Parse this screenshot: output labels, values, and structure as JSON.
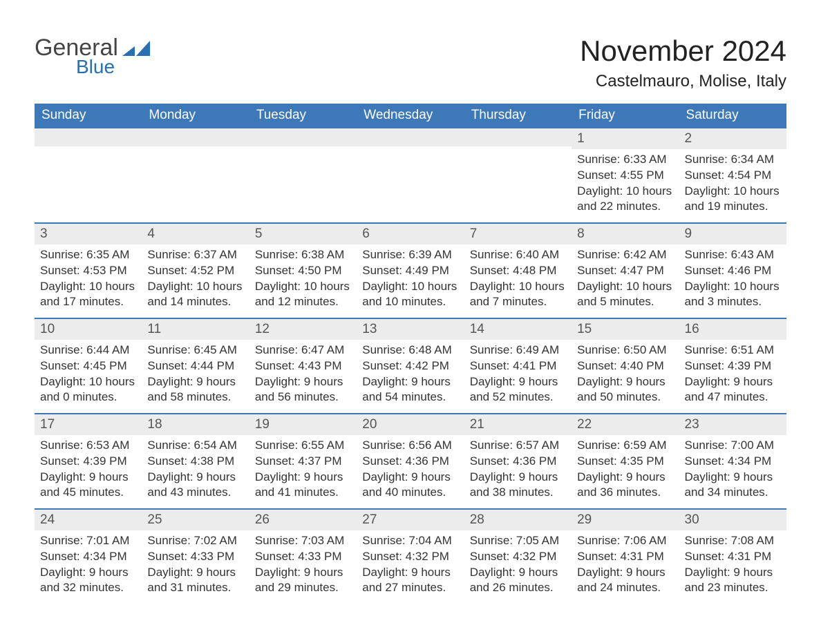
{
  "brand": {
    "name1": "General",
    "name2": "Blue",
    "logo_color": "#2a6fb3",
    "text1_color": "#444444",
    "text1_fontsize": 34,
    "text2_fontsize": 28
  },
  "title": {
    "month": "November 2024",
    "location": "Castelmauro, Molise, Italy",
    "month_fontsize": 42,
    "location_fontsize": 24,
    "color": "#222222"
  },
  "calendar": {
    "type": "table",
    "header_bg": "#3d78b8",
    "header_fg": "#ffffff",
    "header_fontsize": 19,
    "date_strip_bg": "#ececec",
    "date_strip_border": "#3d78b8",
    "cell_fontsize": 17,
    "cell_color": "#333333",
    "background_color": "#ffffff",
    "columns": [
      "Sunday",
      "Monday",
      "Tuesday",
      "Wednesday",
      "Thursday",
      "Friday",
      "Saturday"
    ],
    "weeks": [
      [
        null,
        null,
        null,
        null,
        null,
        {
          "d": "1",
          "sunrise": "6:33 AM",
          "sunset": "4:55 PM",
          "dl1": "10 hours",
          "dl2": "and 22 minutes."
        },
        {
          "d": "2",
          "sunrise": "6:34 AM",
          "sunset": "4:54 PM",
          "dl1": "10 hours",
          "dl2": "and 19 minutes."
        }
      ],
      [
        {
          "d": "3",
          "sunrise": "6:35 AM",
          "sunset": "4:53 PM",
          "dl1": "10 hours",
          "dl2": "and 17 minutes."
        },
        {
          "d": "4",
          "sunrise": "6:37 AM",
          "sunset": "4:52 PM",
          "dl1": "10 hours",
          "dl2": "and 14 minutes."
        },
        {
          "d": "5",
          "sunrise": "6:38 AM",
          "sunset": "4:50 PM",
          "dl1": "10 hours",
          "dl2": "and 12 minutes."
        },
        {
          "d": "6",
          "sunrise": "6:39 AM",
          "sunset": "4:49 PM",
          "dl1": "10 hours",
          "dl2": "and 10 minutes."
        },
        {
          "d": "7",
          "sunrise": "6:40 AM",
          "sunset": "4:48 PM",
          "dl1": "10 hours",
          "dl2": "and 7 minutes."
        },
        {
          "d": "8",
          "sunrise": "6:42 AM",
          "sunset": "4:47 PM",
          "dl1": "10 hours",
          "dl2": "and 5 minutes."
        },
        {
          "d": "9",
          "sunrise": "6:43 AM",
          "sunset": "4:46 PM",
          "dl1": "10 hours",
          "dl2": "and 3 minutes."
        }
      ],
      [
        {
          "d": "10",
          "sunrise": "6:44 AM",
          "sunset": "4:45 PM",
          "dl1": "10 hours",
          "dl2": "and 0 minutes."
        },
        {
          "d": "11",
          "sunrise": "6:45 AM",
          "sunset": "4:44 PM",
          "dl1": "9 hours",
          "dl2": "and 58 minutes."
        },
        {
          "d": "12",
          "sunrise": "6:47 AM",
          "sunset": "4:43 PM",
          "dl1": "9 hours",
          "dl2": "and 56 minutes."
        },
        {
          "d": "13",
          "sunrise": "6:48 AM",
          "sunset": "4:42 PM",
          "dl1": "9 hours",
          "dl2": "and 54 minutes."
        },
        {
          "d": "14",
          "sunrise": "6:49 AM",
          "sunset": "4:41 PM",
          "dl1": "9 hours",
          "dl2": "and 52 minutes."
        },
        {
          "d": "15",
          "sunrise": "6:50 AM",
          "sunset": "4:40 PM",
          "dl1": "9 hours",
          "dl2": "and 50 minutes."
        },
        {
          "d": "16",
          "sunrise": "6:51 AM",
          "sunset": "4:39 PM",
          "dl1": "9 hours",
          "dl2": "and 47 minutes."
        }
      ],
      [
        {
          "d": "17",
          "sunrise": "6:53 AM",
          "sunset": "4:39 PM",
          "dl1": "9 hours",
          "dl2": "and 45 minutes."
        },
        {
          "d": "18",
          "sunrise": "6:54 AM",
          "sunset": "4:38 PM",
          "dl1": "9 hours",
          "dl2": "and 43 minutes."
        },
        {
          "d": "19",
          "sunrise": "6:55 AM",
          "sunset": "4:37 PM",
          "dl1": "9 hours",
          "dl2": "and 41 minutes."
        },
        {
          "d": "20",
          "sunrise": "6:56 AM",
          "sunset": "4:36 PM",
          "dl1": "9 hours",
          "dl2": "and 40 minutes."
        },
        {
          "d": "21",
          "sunrise": "6:57 AM",
          "sunset": "4:36 PM",
          "dl1": "9 hours",
          "dl2": "and 38 minutes."
        },
        {
          "d": "22",
          "sunrise": "6:59 AM",
          "sunset": "4:35 PM",
          "dl1": "9 hours",
          "dl2": "and 36 minutes."
        },
        {
          "d": "23",
          "sunrise": "7:00 AM",
          "sunset": "4:34 PM",
          "dl1": "9 hours",
          "dl2": "and 34 minutes."
        }
      ],
      [
        {
          "d": "24",
          "sunrise": "7:01 AM",
          "sunset": "4:34 PM",
          "dl1": "9 hours",
          "dl2": "and 32 minutes."
        },
        {
          "d": "25",
          "sunrise": "7:02 AM",
          "sunset": "4:33 PM",
          "dl1": "9 hours",
          "dl2": "and 31 minutes."
        },
        {
          "d": "26",
          "sunrise": "7:03 AM",
          "sunset": "4:33 PM",
          "dl1": "9 hours",
          "dl2": "and 29 minutes."
        },
        {
          "d": "27",
          "sunrise": "7:04 AM",
          "sunset": "4:32 PM",
          "dl1": "9 hours",
          "dl2": "and 27 minutes."
        },
        {
          "d": "28",
          "sunrise": "7:05 AM",
          "sunset": "4:32 PM",
          "dl1": "9 hours",
          "dl2": "and 26 minutes."
        },
        {
          "d": "29",
          "sunrise": "7:06 AM",
          "sunset": "4:31 PM",
          "dl1": "9 hours",
          "dl2": "and 24 minutes."
        },
        {
          "d": "30",
          "sunrise": "7:08 AM",
          "sunset": "4:31 PM",
          "dl1": "9 hours",
          "dl2": "and 23 minutes."
        }
      ]
    ],
    "labels": {
      "sunrise": "Sunrise: ",
      "sunset": "Sunset: ",
      "daylight": "Daylight: "
    }
  }
}
